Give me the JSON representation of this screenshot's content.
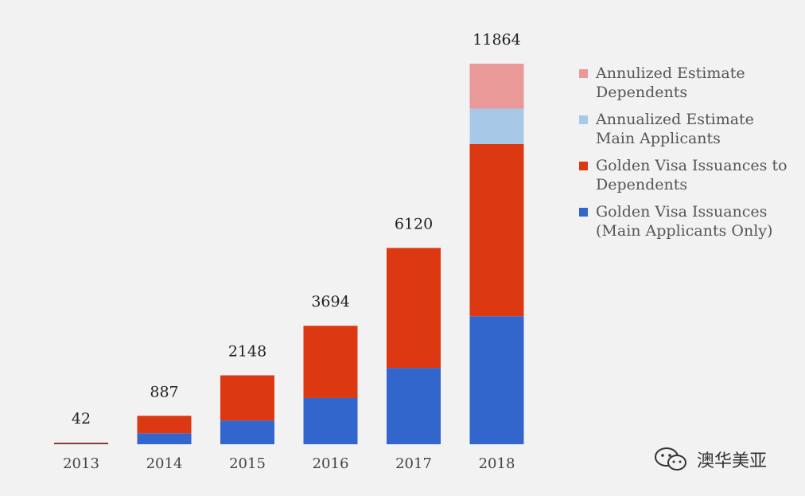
{
  "chart_data": {
    "type": "bar",
    "stacked": true,
    "categories": [
      "2013",
      "2014",
      "2015",
      "2016",
      "2017",
      "2018"
    ],
    "totals": [
      "42",
      "887",
      "2148",
      "3694",
      "6120",
      "11864"
    ],
    "series": [
      {
        "name": "Golden Visa Issuances\n(Main Applicants Only)",
        "color": "#3366cc",
        "values": [
          20,
          340,
          740,
          1440,
          2380,
          3990
        ]
      },
      {
        "name": "Golden Visa Issuances to\nDependents",
        "color": "#dc3912",
        "values": [
          22,
          547,
          1408,
          2254,
          3740,
          5370
        ]
      },
      {
        "name": "Annualized Estimate\nMain Applicants",
        "color": "#a8c8e8",
        "values": [
          0,
          0,
          0,
          0,
          0,
          1100
        ]
      },
      {
        "name": "Annulized Estimate\nDependents",
        "color": "#ea9999",
        "values": [
          0,
          0,
          0,
          0,
          0,
          1404
        ]
      }
    ],
    "special_colors": {
      "2013": "#8b3a3a"
    },
    "legend_order": [
      3,
      2,
      1,
      0
    ],
    "legend_position": "right",
    "grid": false,
    "ylim": [
      0,
      11864
    ]
  },
  "watermark": {
    "text": "澳华美亚",
    "icon": "wechat-icon"
  }
}
